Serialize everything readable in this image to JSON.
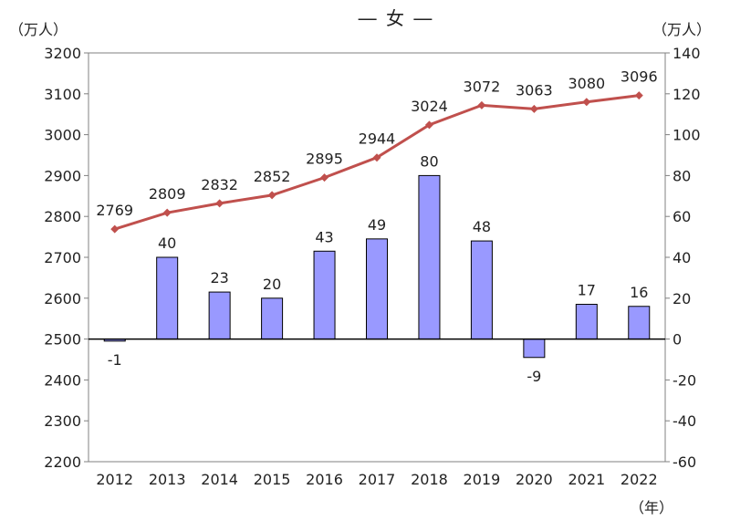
{
  "chart_data": {
    "type": "bar+line",
    "title": "― 女 ―",
    "categories": [
      "2012",
      "2013",
      "2014",
      "2015",
      "2016",
      "2017",
      "2018",
      "2019",
      "2020",
      "2021",
      "2022"
    ],
    "line_series": {
      "axis": "left",
      "values": [
        2769,
        2809,
        2832,
        2852,
        2895,
        2944,
        3024,
        3072,
        3063,
        3080,
        3096
      ],
      "color": "#c0504d"
    },
    "bar_series": {
      "axis": "right",
      "values": [
        -1,
        40,
        23,
        20,
        43,
        49,
        80,
        48,
        -9,
        17,
        16
      ],
      "color": "#9999ff"
    },
    "left_axis": {
      "unit": "（万人）",
      "min": 2200,
      "max": 3200,
      "ticks": [
        "3200",
        "3100",
        "3000",
        "2900",
        "2800",
        "2700",
        "2600",
        "2500",
        "2400",
        "2300",
        "2200"
      ]
    },
    "right_axis": {
      "unit": "（万人）",
      "min": -60,
      "max": 140,
      "ticks": [
        "140",
        "120",
        "100",
        "80",
        "60",
        "40",
        "20",
        "0",
        "-20",
        "-40",
        "-60"
      ]
    },
    "x_axis_unit": "（年）",
    "grid": false
  }
}
